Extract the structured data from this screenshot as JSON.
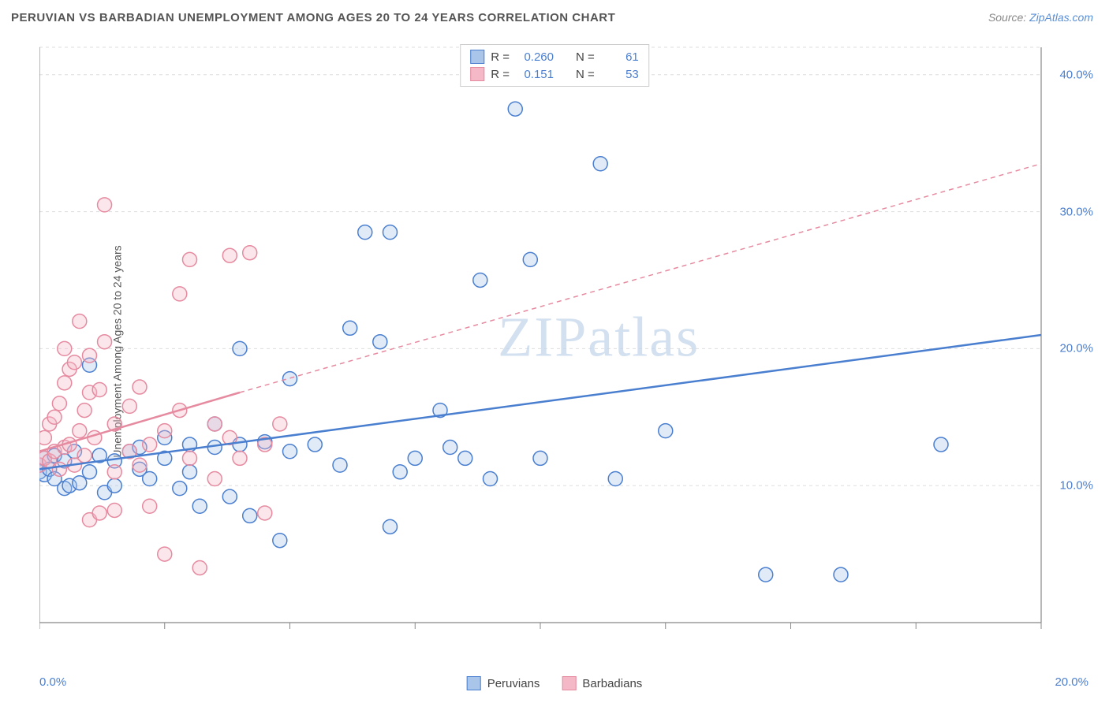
{
  "title": "PERUVIAN VS BARBADIAN UNEMPLOYMENT AMONG AGES 20 TO 24 YEARS CORRELATION CHART",
  "source_prefix": "Source: ",
  "source_link": "ZipAtlas.com",
  "y_axis_label": "Unemployment Among Ages 20 to 24 years",
  "watermark": "ZIPatlas",
  "chart": {
    "type": "scatter",
    "xlim": [
      0,
      20
    ],
    "ylim": [
      0,
      42
    ],
    "x_ticks": [
      0,
      2.5,
      5,
      7.5,
      10,
      12.5,
      15,
      17.5,
      20
    ],
    "x_tick_labels_shown": {
      "0": "0.0%",
      "20": "20.0%"
    },
    "y_ticks": [
      10,
      20,
      30,
      40
    ],
    "y_tick_labels": [
      "10.0%",
      "20.0%",
      "30.0%",
      "40.0%"
    ],
    "background_color": "#ffffff",
    "grid_color": "#dddddd",
    "grid_dash": "4,4",
    "axis_color": "#888888",
    "marker_radius": 9,
    "marker_stroke_width": 1.5,
    "marker_fill_opacity": 0.35,
    "series": [
      {
        "name": "Peruvians",
        "color_stroke": "#4a7fd0",
        "color_fill": "#a9c5ea",
        "R_label": "R =",
        "R": "0.260",
        "N_label": "N =",
        "N": "61",
        "trend_solid": {
          "x1": 0,
          "y1": 11.2,
          "x2": 20,
          "y2": 21.0
        },
        "trend_dash_from": null,
        "points": [
          [
            0.0,
            11.0
          ],
          [
            0.0,
            11.5
          ],
          [
            0.1,
            10.8
          ],
          [
            0.1,
            12.0
          ],
          [
            0.2,
            11.2
          ],
          [
            0.3,
            10.5
          ],
          [
            0.3,
            12.2
          ],
          [
            0.5,
            11.8
          ],
          [
            0.5,
            9.8
          ],
          [
            0.6,
            10.0
          ],
          [
            0.7,
            12.5
          ],
          [
            0.8,
            10.2
          ],
          [
            1.0,
            11.0
          ],
          [
            1.0,
            18.8
          ],
          [
            1.2,
            12.2
          ],
          [
            1.3,
            9.5
          ],
          [
            1.5,
            11.8
          ],
          [
            1.5,
            10.0
          ],
          [
            1.8,
            12.5
          ],
          [
            2.0,
            11.2
          ],
          [
            2.0,
            12.8
          ],
          [
            2.2,
            10.5
          ],
          [
            2.5,
            12.0
          ],
          [
            2.5,
            13.5
          ],
          [
            2.8,
            9.8
          ],
          [
            3.0,
            13.0
          ],
          [
            3.0,
            11.0
          ],
          [
            3.2,
            8.5
          ],
          [
            3.5,
            12.8
          ],
          [
            3.5,
            14.5
          ],
          [
            3.8,
            9.2
          ],
          [
            4.0,
            13.0
          ],
          [
            4.0,
            20.0
          ],
          [
            4.2,
            7.8
          ],
          [
            4.5,
            13.2
          ],
          [
            4.8,
            6.0
          ],
          [
            5.0,
            12.5
          ],
          [
            5.0,
            17.8
          ],
          [
            5.5,
            13.0
          ],
          [
            6.0,
            11.5
          ],
          [
            6.2,
            21.5
          ],
          [
            6.5,
            28.5
          ],
          [
            6.8,
            20.5
          ],
          [
            7.0,
            7.0
          ],
          [
            7.0,
            28.5
          ],
          [
            7.2,
            11.0
          ],
          [
            7.5,
            12.0
          ],
          [
            8.0,
            15.5
          ],
          [
            8.2,
            12.8
          ],
          [
            8.5,
            12.0
          ],
          [
            8.8,
            25.0
          ],
          [
            9.0,
            10.5
          ],
          [
            9.5,
            37.5
          ],
          [
            9.8,
            26.5
          ],
          [
            10.0,
            12.0
          ],
          [
            11.2,
            33.5
          ],
          [
            11.5,
            10.5
          ],
          [
            12.5,
            14.0
          ],
          [
            14.5,
            3.5
          ],
          [
            16.0,
            3.5
          ],
          [
            18.0,
            13.0
          ]
        ]
      },
      {
        "name": "Barbadians",
        "color_stroke": "#e68aa0",
        "color_fill": "#f4b8c6",
        "R_label": "R =",
        "R": "0.151",
        "N_label": "N =",
        "N": "53",
        "trend_solid": {
          "x1": 0,
          "y1": 12.5,
          "x2": 4.0,
          "y2": 16.8
        },
        "trend_dash_from": {
          "x1": 4.0,
          "y1": 16.8,
          "x2": 20,
          "y2": 33.5
        },
        "points": [
          [
            0.0,
            11.5
          ],
          [
            0.1,
            12.0
          ],
          [
            0.1,
            13.5
          ],
          [
            0.2,
            11.8
          ],
          [
            0.2,
            14.5
          ],
          [
            0.3,
            12.5
          ],
          [
            0.3,
            15.0
          ],
          [
            0.4,
            11.2
          ],
          [
            0.4,
            16.0
          ],
          [
            0.5,
            12.8
          ],
          [
            0.5,
            17.5
          ],
          [
            0.5,
            20.0
          ],
          [
            0.6,
            13.0
          ],
          [
            0.6,
            18.5
          ],
          [
            0.7,
            11.5
          ],
          [
            0.7,
            19.0
          ],
          [
            0.8,
            14.0
          ],
          [
            0.8,
            22.0
          ],
          [
            0.9,
            12.2
          ],
          [
            0.9,
            15.5
          ],
          [
            1.0,
            16.8
          ],
          [
            1.0,
            19.5
          ],
          [
            1.0,
            7.5
          ],
          [
            1.1,
            13.5
          ],
          [
            1.2,
            17.0
          ],
          [
            1.2,
            8.0
          ],
          [
            1.3,
            20.5
          ],
          [
            1.3,
            30.5
          ],
          [
            1.5,
            14.5
          ],
          [
            1.5,
            11.0
          ],
          [
            1.5,
            8.2
          ],
          [
            1.8,
            15.8
          ],
          [
            1.8,
            12.5
          ],
          [
            2.0,
            11.5
          ],
          [
            2.0,
            17.2
          ],
          [
            2.2,
            13.0
          ],
          [
            2.2,
            8.5
          ],
          [
            2.5,
            14.0
          ],
          [
            2.5,
            5.0
          ],
          [
            2.8,
            15.5
          ],
          [
            2.8,
            24.0
          ],
          [
            3.0,
            12.0
          ],
          [
            3.0,
            26.5
          ],
          [
            3.2,
            4.0
          ],
          [
            3.5,
            14.5
          ],
          [
            3.5,
            10.5
          ],
          [
            3.8,
            13.5
          ],
          [
            3.8,
            26.8
          ],
          [
            4.0,
            12.0
          ],
          [
            4.2,
            27.0
          ],
          [
            4.5,
            13.0
          ],
          [
            4.5,
            8.0
          ],
          [
            4.8,
            14.5
          ]
        ]
      }
    ]
  },
  "legend_bottom": [
    {
      "label": "Peruvians",
      "stroke": "#4a7fd0",
      "fill": "#a9c5ea"
    },
    {
      "label": "Barbadians",
      "stroke": "#e68aa0",
      "fill": "#f4b8c6"
    }
  ]
}
